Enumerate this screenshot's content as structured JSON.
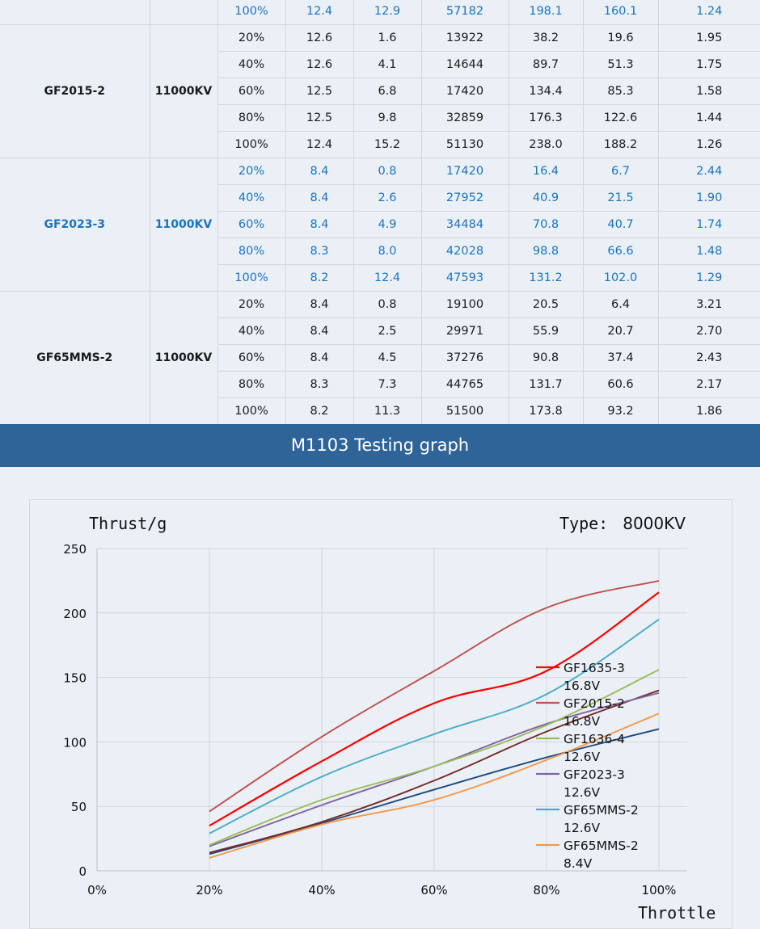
{
  "table": {
    "groups": [
      {
        "model": "",
        "kv": "",
        "highlight": true,
        "rows": [
          [
            "100%",
            "12.4",
            "12.9",
            "57182",
            "198.1",
            "160.1",
            "1.24"
          ]
        ]
      },
      {
        "model": "GF2015-2",
        "kv": "11000KV",
        "highlight": false,
        "rows": [
          [
            "20%",
            "12.6",
            "1.6",
            "13922",
            "38.2",
            "19.6",
            "1.95"
          ],
          [
            "40%",
            "12.6",
            "4.1",
            "14644",
            "89.7",
            "51.3",
            "1.75"
          ],
          [
            "60%",
            "12.5",
            "6.8",
            "17420",
            "134.4",
            "85.3",
            "1.58"
          ],
          [
            "80%",
            "12.5",
            "9.8",
            "32859",
            "176.3",
            "122.6",
            "1.44"
          ],
          [
            "100%",
            "12.4",
            "15.2",
            "51130",
            "238.0",
            "188.2",
            "1.26"
          ]
        ]
      },
      {
        "model": "GF2023-3",
        "kv": "11000KV",
        "highlight": true,
        "rows": [
          [
            "20%",
            "8.4",
            "0.8",
            "17420",
            "16.4",
            "6.7",
            "2.44"
          ],
          [
            "40%",
            "8.4",
            "2.6",
            "27952",
            "40.9",
            "21.5",
            "1.90"
          ],
          [
            "60%",
            "8.4",
            "4.9",
            "34484",
            "70.8",
            "40.7",
            "1.74"
          ],
          [
            "80%",
            "8.3",
            "8.0",
            "42028",
            "98.8",
            "66.6",
            "1.48"
          ],
          [
            "100%",
            "8.2",
            "12.4",
            "47593",
            "131.2",
            "102.0",
            "1.29"
          ]
        ]
      },
      {
        "model": "GF65MMS-2",
        "kv": "11000KV",
        "highlight": false,
        "rows": [
          [
            "20%",
            "8.4",
            "0.8",
            "19100",
            "20.5",
            "6.4",
            "3.21"
          ],
          [
            "40%",
            "8.4",
            "2.5",
            "29971",
            "55.9",
            "20.7",
            "2.70"
          ],
          [
            "60%",
            "8.4",
            "4.5",
            "37276",
            "90.8",
            "37.4",
            "2.43"
          ],
          [
            "80%",
            "8.3",
            "7.3",
            "44765",
            "131.7",
            "60.6",
            "2.17"
          ],
          [
            "100%",
            "8.2",
            "11.3",
            "51500",
            "173.8",
            "93.2",
            "1.86"
          ]
        ]
      }
    ]
  },
  "banner": {
    "title": "M1103 Testing graph"
  },
  "chart": {
    "ylabel": "Thrust/g",
    "type_label": "Type:",
    "type_value": "8000KV",
    "xlabel": "Throttle"
  },
  "chart_data": {
    "type": "line",
    "title": "M1103 Testing graph",
    "subtitle": "Type: 8000KV",
    "xlabel": "Throttle",
    "ylabel": "Thrust/g",
    "x": [
      "0%",
      "20%",
      "40%",
      "60%",
      "80%",
      "100%"
    ],
    "x_values": [
      0,
      20,
      40,
      60,
      80,
      100
    ],
    "y_ticks": [
      0,
      50,
      100,
      150,
      200,
      250
    ],
    "ylim": [
      0,
      250
    ],
    "xlim": [
      0,
      100
    ],
    "grid": true,
    "legend_position": "right-inside",
    "smooth": true,
    "series": [
      {
        "name": "GF1635-3 16.8V",
        "label1": "GF1635-3",
        "label2": "16.8V",
        "color": "#ff0000",
        "in_legend": true,
        "x": [
          20,
          40,
          60,
          80,
          100
        ],
        "values": [
          35,
          85,
          130,
          155,
          216
        ]
      },
      {
        "name": "GF2015-2 16.8V",
        "label1": "GF2015-2",
        "label2": "16.8V",
        "color": "#c0504d",
        "in_legend": true,
        "x": [
          20,
          40,
          60,
          80,
          100
        ],
        "values": [
          46,
          104,
          155,
          204,
          225
        ]
      },
      {
        "name": "GF1636-4 12.6V",
        "label1": "GF1636-4",
        "label2": "12.6V",
        "color": "#9bbb59",
        "in_legend": true,
        "x": [
          20,
          40,
          60,
          80,
          100
        ],
        "values": [
          20,
          55,
          81,
          113,
          156
        ]
      },
      {
        "name": "GF2023-3 12.6V",
        "label1": "GF2023-3",
        "label2": "12.6V",
        "color": "#8064a2",
        "in_legend": true,
        "x": [
          20,
          40,
          60,
          80,
          100
        ],
        "values": [
          19,
          51,
          81,
          114,
          138
        ]
      },
      {
        "name": "GF65MMS-2 12.6V",
        "label1": "GF65MMS-2",
        "label2": "12.6V",
        "color": "#4bacc6",
        "in_legend": true,
        "x": [
          20,
          40,
          60,
          80,
          100
        ],
        "values": [
          29,
          73,
          106,
          137,
          195
        ]
      },
      {
        "name": "GF65MMS-2 8.4V",
        "label1": "GF65MMS-2",
        "label2": "8.4V",
        "color": "#f79646",
        "in_legend": true,
        "x": [
          20,
          40,
          60,
          80,
          100
        ],
        "values": [
          10,
          36,
          55,
          86,
          122
        ]
      },
      {
        "name": "",
        "label1": "",
        "label2": "",
        "color": "#772c2a",
        "in_legend": false,
        "x": [
          20,
          40,
          60,
          80,
          100
        ],
        "values": [
          14,
          38,
          70,
          108,
          140
        ]
      },
      {
        "name": "",
        "label1": "",
        "label2": "",
        "color": "#1f497d",
        "in_legend": false,
        "x": [
          20,
          40,
          60,
          80,
          100
        ],
        "values": [
          13,
          37,
          63,
          88,
          110
        ]
      }
    ]
  }
}
